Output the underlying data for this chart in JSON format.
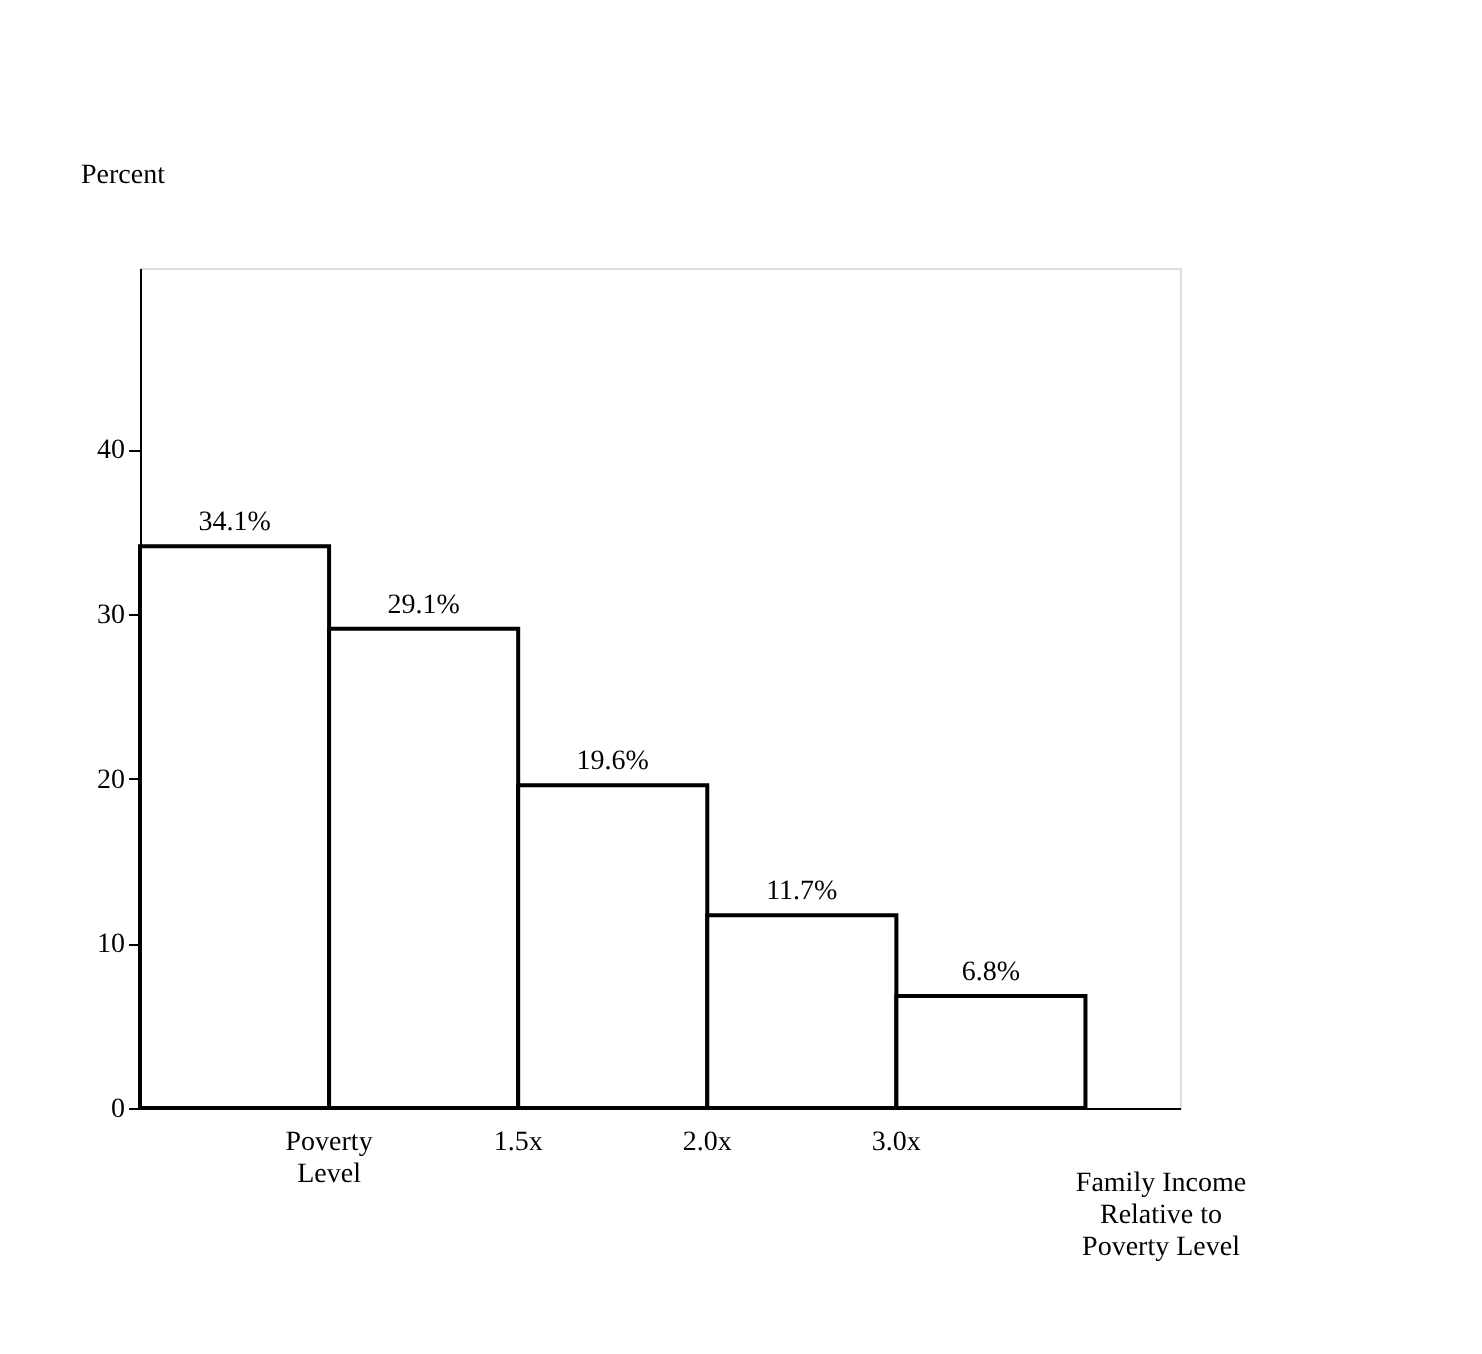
{
  "chart_data": {
    "type": "bar",
    "ylabel": "Percent",
    "xlabel": "Family Income Relative to Poverty Level",
    "categories": [
      null,
      null,
      null,
      null,
      null
    ],
    "values": [
      34.1,
      29.1,
      19.6,
      11.7,
      6.8
    ],
    "value_labels": [
      "34.1%",
      "29.1%",
      "19.6%",
      "11.7%",
      "6.8%"
    ],
    "color": "#ffffff",
    "annotations": [
      "Poverty Level",
      "1.5x",
      "2.0x",
      "3.0x"
    ],
    "ylim": [
      0,
      51
    ],
    "yticks": [
      0,
      10,
      20,
      30,
      40
    ],
    "grid": false
  }
}
